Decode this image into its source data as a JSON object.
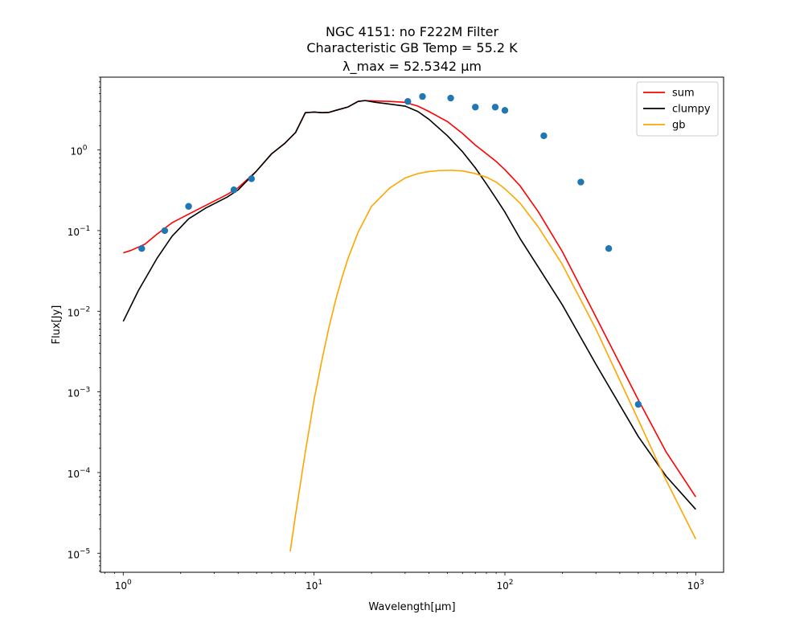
{
  "chart_data": {
    "type": "line",
    "title_lines": [
      "NGC 4151: no F222M Filter",
      "Characteristic GB Temp = 55.2 K",
      "λ_max = 52.5342 μm"
    ],
    "xlabel": "Wavelength[μm]",
    "ylabel": "Flux[Jy]",
    "xscale": "log",
    "yscale": "log",
    "xlim": [
      0.76,
      1400
    ],
    "ylim": [
      5.8e-06,
      8
    ],
    "x_ticks": [
      {
        "value": 1,
        "base": "10",
        "exp": "0"
      },
      {
        "value": 10,
        "base": "10",
        "exp": "1"
      },
      {
        "value": 100,
        "base": "10",
        "exp": "2"
      },
      {
        "value": 1000,
        "base": "10",
        "exp": "3"
      }
    ],
    "y_ticks": [
      {
        "value": 1e-05,
        "base": "10",
        "exp": "−5"
      },
      {
        "value": 0.0001,
        "base": "10",
        "exp": "−4"
      },
      {
        "value": 0.001,
        "base": "10",
        "exp": "−3"
      },
      {
        "value": 0.01,
        "base": "10",
        "exp": "−2"
      },
      {
        "value": 0.1,
        "base": "10",
        "exp": "−1"
      },
      {
        "value": 1,
        "base": "10",
        "exp": "0"
      }
    ],
    "legend_position": "top-right",
    "series": [
      {
        "name": "sum",
        "color": "#ff0000",
        "x": [
          1.0,
          1.1,
          1.3,
          1.5,
          1.8,
          2.2,
          2.7,
          3.5,
          4.0,
          5.0,
          6.0,
          7.0,
          8.0,
          9.0,
          10.0,
          11.0,
          12.0,
          13.0,
          15.0,
          17.0,
          18.5,
          21.0,
          25.0,
          30.0,
          35.0,
          40.0,
          50.0,
          60.0,
          70.0,
          80.0,
          90.0,
          100.0,
          120.0,
          150.0,
          200.0,
          300.0,
          500.0,
          700.0,
          1000.0
        ],
        "y": [
          0.053,
          0.057,
          0.068,
          0.09,
          0.125,
          0.16,
          0.205,
          0.28,
          0.34,
          0.55,
          0.9,
          1.2,
          1.65,
          2.9,
          2.95,
          2.9,
          2.93,
          3.1,
          3.4,
          4.0,
          4.1,
          4.05,
          4.0,
          3.9,
          3.5,
          3.0,
          2.25,
          1.6,
          1.15,
          0.9,
          0.72,
          0.57,
          0.36,
          0.17,
          0.055,
          0.0085,
          0.0008,
          0.00018,
          5e-05
        ]
      },
      {
        "name": "clumpy",
        "color": "#000000",
        "x": [
          1.0,
          1.2,
          1.5,
          1.8,
          2.2,
          2.7,
          3.5,
          4.0,
          5.0,
          6.0,
          7.0,
          8.0,
          9.0,
          10.0,
          11.0,
          12.0,
          13.0,
          15.0,
          17.0,
          18.5,
          21.0,
          25.0,
          30.0,
          35.0,
          40.0,
          50.0,
          60.0,
          70.0,
          80.0,
          90.0,
          100.0,
          120.0,
          150.0,
          200.0,
          300.0,
          500.0,
          700.0,
          1000.0
        ],
        "y": [
          0.0075,
          0.018,
          0.045,
          0.085,
          0.14,
          0.19,
          0.26,
          0.32,
          0.55,
          0.9,
          1.2,
          1.65,
          2.9,
          2.95,
          2.9,
          2.93,
          3.1,
          3.4,
          4.0,
          4.1,
          3.9,
          3.7,
          3.5,
          3.0,
          2.4,
          1.5,
          0.95,
          0.6,
          0.38,
          0.25,
          0.17,
          0.08,
          0.035,
          0.012,
          0.0022,
          0.00028,
          9e-05,
          3.5e-05
        ]
      },
      {
        "name": "gb",
        "color": "#ffa500",
        "x": [
          7.5,
          8.0,
          9.0,
          10.0,
          11.0,
          12.0,
          13.0,
          14.0,
          15.0,
          17.0,
          20.0,
          25.0,
          30.0,
          35.0,
          40.0,
          45.0,
          52.5,
          60.0,
          70.0,
          80.0,
          90.0,
          100.0,
          120.0,
          150.0,
          200.0,
          300.0,
          500.0,
          700.0,
          1000.0
        ],
        "y": [
          1.05e-05,
          3e-05,
          0.00018,
          0.0008,
          0.0025,
          0.0065,
          0.014,
          0.026,
          0.044,
          0.095,
          0.2,
          0.34,
          0.45,
          0.51,
          0.54,
          0.555,
          0.56,
          0.55,
          0.51,
          0.46,
          0.4,
          0.33,
          0.22,
          0.11,
          0.038,
          0.006,
          0.00045,
          8e-05,
          1.5e-05
        ]
      }
    ],
    "points": {
      "color": "#1f77b4",
      "x": [
        1.25,
        1.65,
        2.2,
        3.8,
        4.7,
        31.0,
        37.0,
        52.0,
        70.0,
        89.0,
        100.0,
        160.0,
        250.0,
        350.0,
        500.0
      ],
      "y": [
        0.06,
        0.1,
        0.2,
        0.32,
        0.44,
        4.0,
        4.6,
        4.4,
        3.4,
        3.4,
        3.1,
        1.5,
        0.4,
        0.06,
        0.0007
      ]
    }
  }
}
